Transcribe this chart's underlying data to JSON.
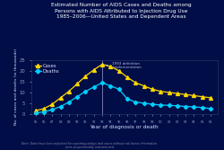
{
  "title": "Estimated Number of AIDS Cases and Deaths among\nPersons with AIDS Attributed to Injection Drug Use\n1985–2006—United States and Dependent Areas",
  "xlabel": "Year of diagnosis or death",
  "ylabel": "No. of cases and deaths (in thousands)",
  "background_color": "#000D47",
  "plot_bg_color": "#000D47",
  "years": [
    1985,
    1986,
    1987,
    1988,
    1989,
    1990,
    1991,
    1992,
    1993,
    1994,
    1995,
    1996,
    1997,
    1998,
    1999,
    2000,
    2001,
    2002,
    2003,
    2004,
    2005,
    2006
  ],
  "cases": [
    1.5,
    2.5,
    4.5,
    7.5,
    10.5,
    14.0,
    17.5,
    20.5,
    23.0,
    22.0,
    20.0,
    17.0,
    14.5,
    13.0,
    11.5,
    10.5,
    10.0,
    9.5,
    9.0,
    8.5,
    8.0,
    7.5
  ],
  "deaths": [
    0.5,
    1.0,
    2.0,
    3.5,
    5.5,
    8.0,
    10.5,
    12.5,
    14.5,
    13.0,
    11.5,
    7.0,
    5.5,
    5.0,
    4.5,
    4.2,
    4.0,
    3.8,
    3.5,
    3.3,
    3.0,
    2.5
  ],
  "cases_color": "#FFD700",
  "deaths_color": "#00CFFF",
  "vline_year": 1993,
  "vline_color": "#8888BB",
  "annotation_text": "1993 definition\nimplementation",
  "annotation_color": "#BBBBDD",
  "ylim": [
    0,
    25
  ],
  "yticks": [
    0,
    5,
    10,
    15,
    20,
    25
  ],
  "title_color": "#FFFFFF",
  "tick_color": "#9999BB",
  "label_color": "#DDDDFF",
  "footnote": "Note: Data have been adjusted for reporting delays and cases without risk factor information\nwere proportionally redistributed.",
  "footnote_color": "#8888AA",
  "legend_cases": "Cases",
  "legend_deaths": "Deaths"
}
